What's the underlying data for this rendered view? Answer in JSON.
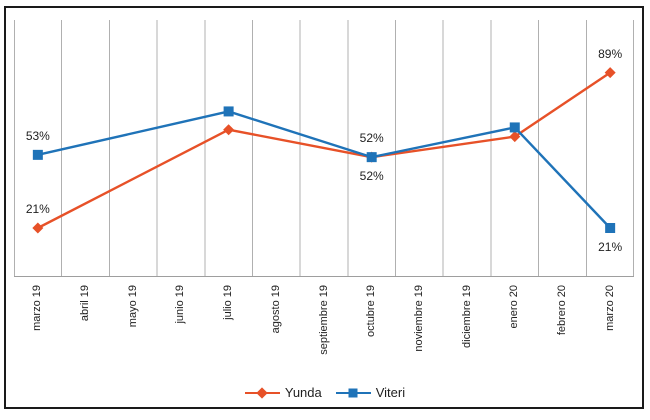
{
  "chart_data": {
    "type": "line",
    "title": "",
    "xlabel": "",
    "ylabel": "",
    "categories": [
      "marzo 19",
      "abril 19",
      "mayo 19",
      "junio 19",
      "julio 19",
      "agosto 19",
      "septiembre 19",
      "octubre 19",
      "noviembre 19",
      "diciembre 19",
      "enero 20",
      "febrero 20",
      "marzo 20"
    ],
    "series": [
      {
        "name": "Yunda",
        "color": "#e75128",
        "marker": "diamond",
        "values": [
          21,
          null,
          null,
          null,
          64,
          null,
          null,
          52,
          null,
          null,
          61,
          null,
          89
        ],
        "data_labels": [
          {
            "index": 0,
            "text": "21%",
            "pos": "above"
          },
          {
            "index": 7,
            "text": "52%",
            "pos": "below"
          },
          {
            "index": 12,
            "text": "89%",
            "pos": "above"
          }
        ]
      },
      {
        "name": "Viteri",
        "color": "#1f73b8",
        "marker": "square",
        "values": [
          53,
          null,
          null,
          null,
          72,
          null,
          null,
          52,
          null,
          null,
          65,
          null,
          21
        ],
        "data_labels": [
          {
            "index": 0,
            "text": "53%",
            "pos": "above"
          },
          {
            "index": 7,
            "text": "52%",
            "pos": "above"
          },
          {
            "index": 12,
            "text": "21%",
            "pos": "below"
          }
        ]
      }
    ],
    "ylim": [
      0,
      112
    ],
    "grid": "vertical",
    "legend_position": "bottom",
    "gridline_color": "#b0b0b0",
    "axis_line_color": "#9e9e9e",
    "text_color": "#1f1f1f",
    "border_color": "#1a1a1a"
  }
}
